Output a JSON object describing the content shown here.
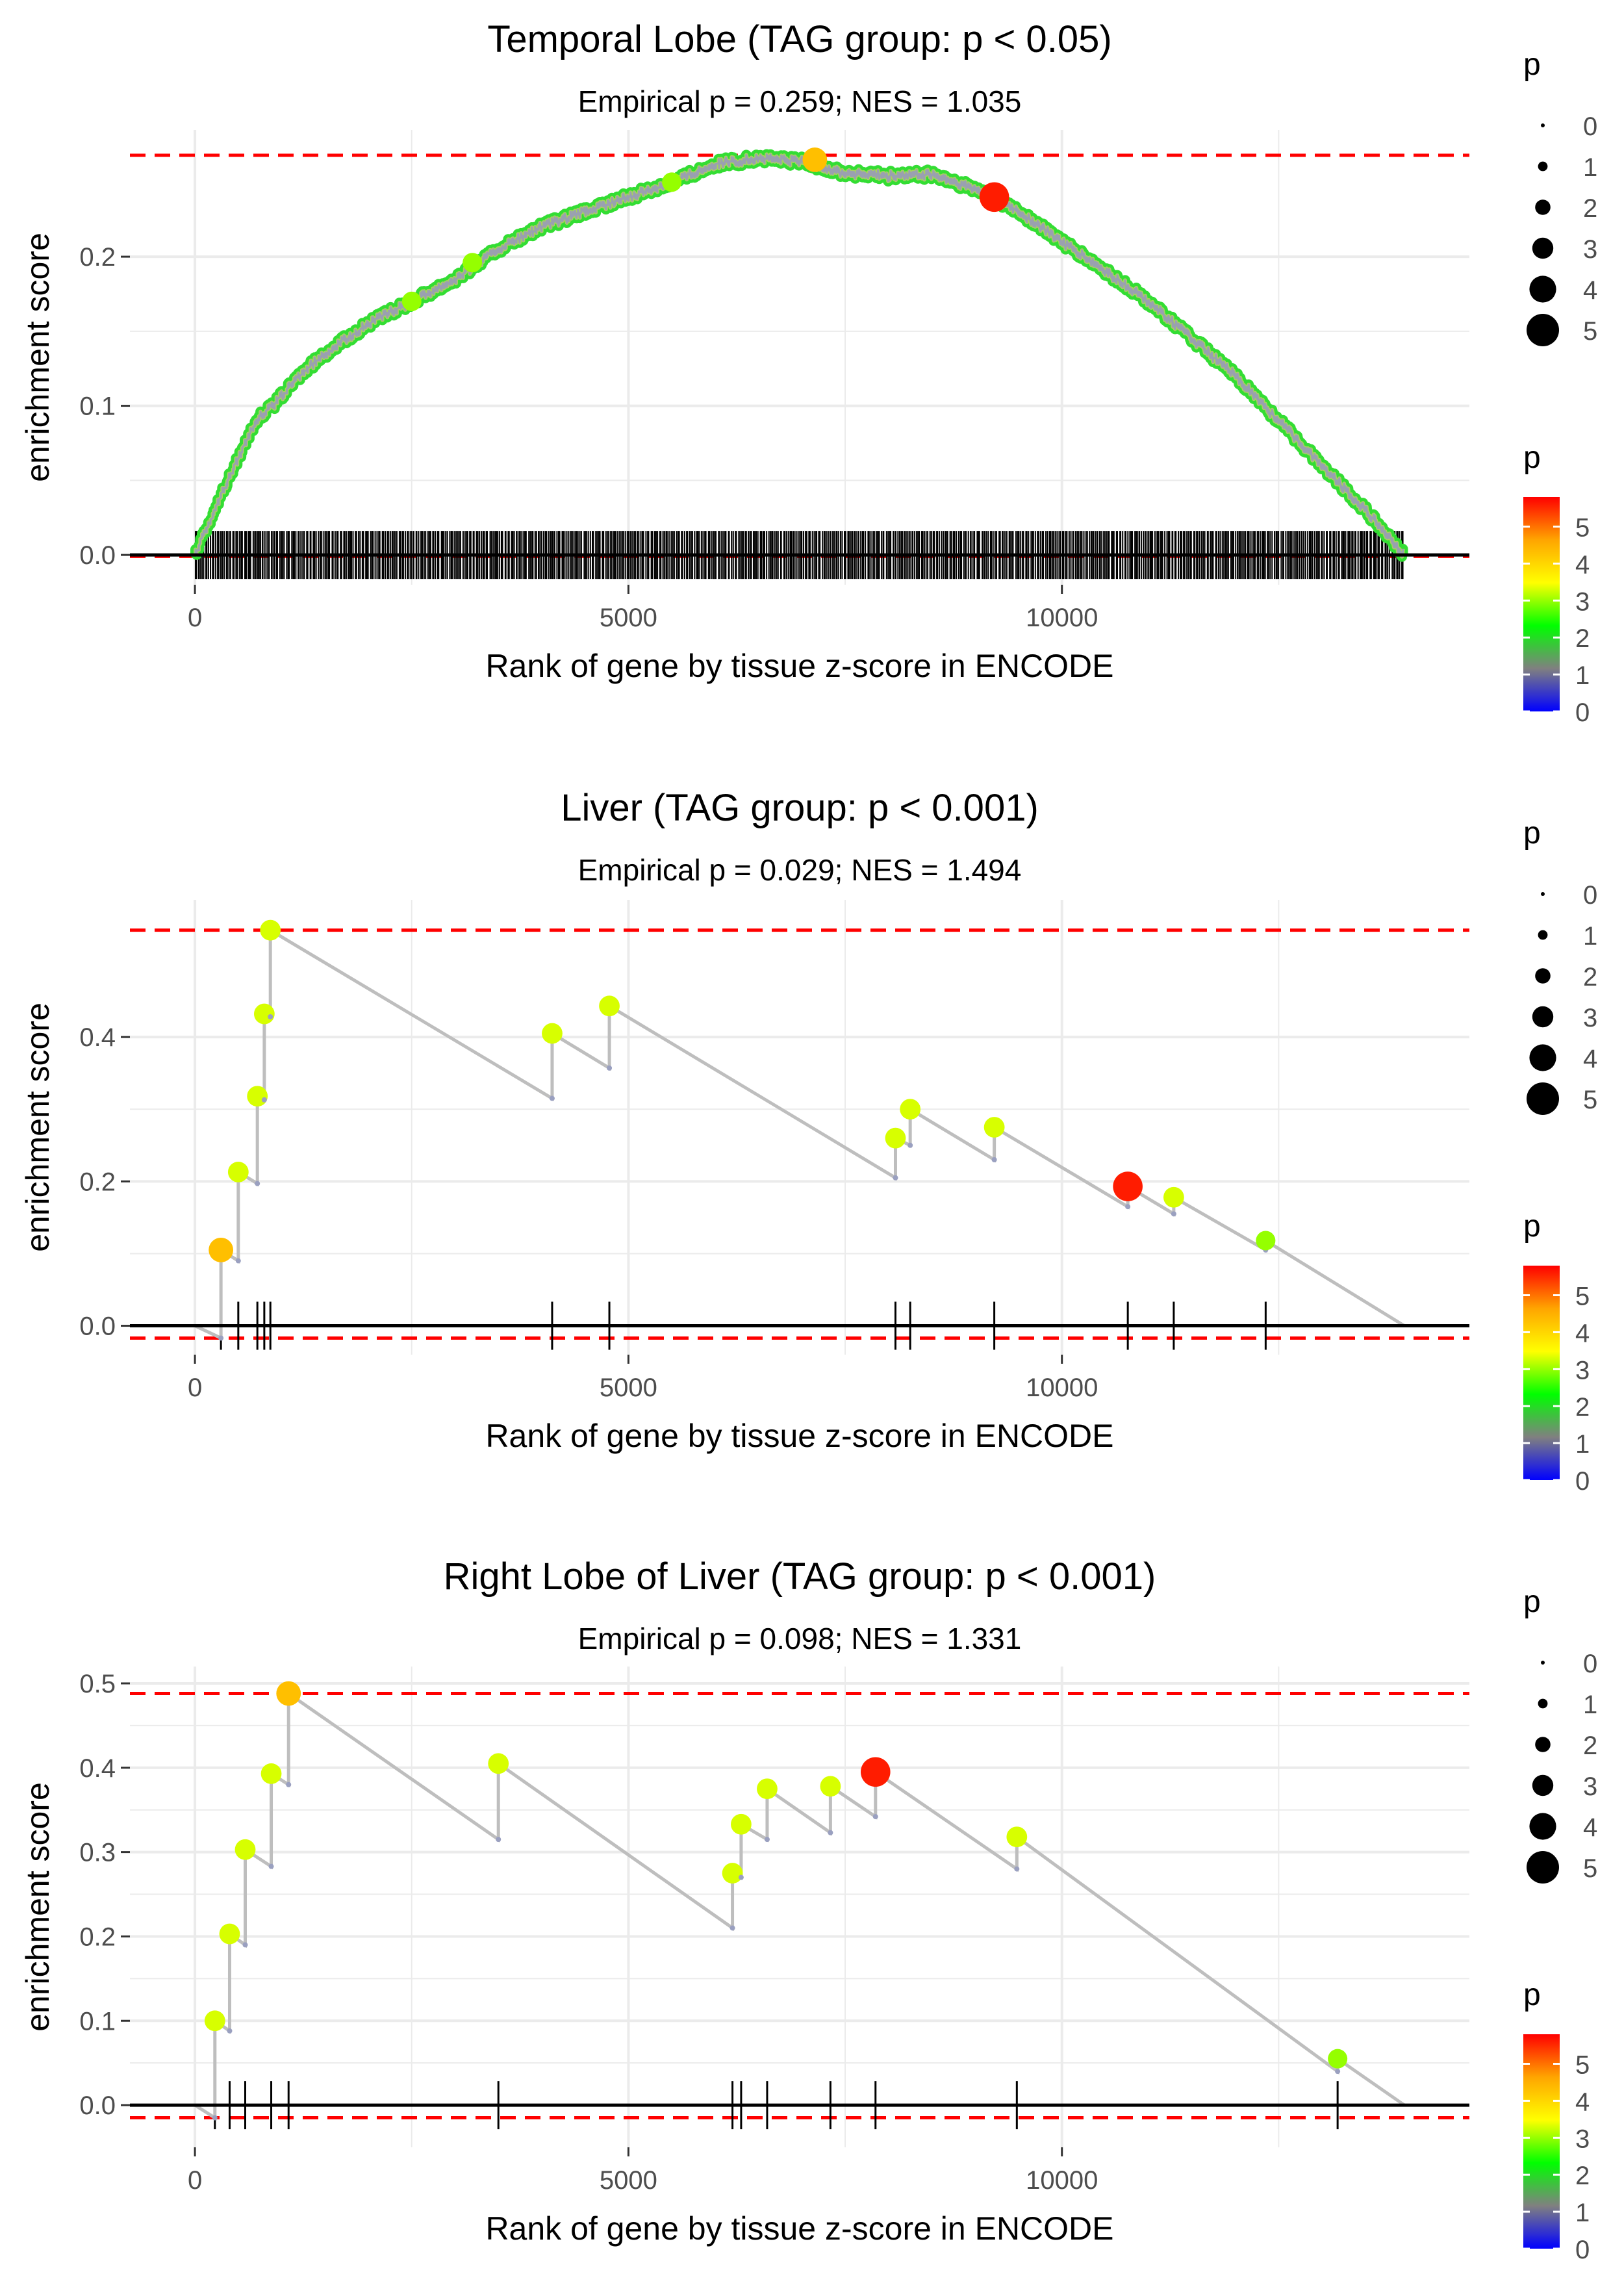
{
  "colors": {
    "background": "#ffffff",
    "grid": "#ebebeb",
    "axis_text": "#4d4d4d",
    "text": "#000000",
    "line": "#bebebe",
    "dashed": "#ff0000",
    "scale_stops": [
      "#0000ff",
      "#808080",
      "#00ff00",
      "#ffff00",
      "#ffa500",
      "#ff0000"
    ]
  },
  "chart_data": [
    {
      "type": "line",
      "title": "Temporal Lobe (TAG group: p < 0.05)",
      "subtitle": "Empirical p = 0.259; NES = 1.035",
      "xlabel": "Rank of gene by tissue z-score in ENCODE",
      "ylabel": "enrichment score",
      "xlim": [
        -750,
        14700
      ],
      "ylim": [
        -0.02,
        0.285
      ],
      "xticks": [
        0,
        5000,
        10000
      ],
      "xtick_labels": [
        "0",
        "5000",
        "10000"
      ],
      "yticks": [
        0.0,
        0.1,
        0.2
      ],
      "ytick_labels": [
        "0.0",
        "0.1",
        "0.2"
      ],
      "hlines": {
        "max": 0.268,
        "min": -0.001,
        "zero": 0
      },
      "dense_curve": true,
      "curve_profile": [
        [
          0,
          0.0
        ],
        [
          150,
          0.02
        ],
        [
          300,
          0.04
        ],
        [
          500,
          0.065
        ],
        [
          700,
          0.09
        ],
        [
          900,
          0.1
        ],
        [
          1200,
          0.12
        ],
        [
          1500,
          0.135
        ],
        [
          2000,
          0.155
        ],
        [
          2500,
          0.17
        ],
        [
          3000,
          0.185
        ],
        [
          3500,
          0.205
        ],
        [
          4000,
          0.22
        ],
        [
          4500,
          0.23
        ],
        [
          5000,
          0.24
        ],
        [
          5500,
          0.25
        ],
        [
          6000,
          0.262
        ],
        [
          6500,
          0.266
        ],
        [
          7000,
          0.264
        ],
        [
          7500,
          0.256
        ],
        [
          8000,
          0.254
        ],
        [
          8500,
          0.255
        ],
        [
          9000,
          0.245
        ],
        [
          9200,
          0.24
        ],
        [
          9500,
          0.23
        ],
        [
          10000,
          0.21
        ],
        [
          10500,
          0.19
        ],
        [
          11000,
          0.17
        ],
        [
          11500,
          0.145
        ],
        [
          12000,
          0.12
        ],
        [
          12500,
          0.09
        ],
        [
          13000,
          0.06
        ],
        [
          13500,
          0.03
        ],
        [
          13950,
          0.0
        ]
      ],
      "rug_range": [
        0,
        13950
      ],
      "rug_count": 720,
      "highlight_points": [
        {
          "x": 2500,
          "y": 0.17,
          "p": 3.0
        },
        {
          "x": 3200,
          "y": 0.196,
          "p": 3.0
        },
        {
          "x": 5500,
          "y": 0.25,
          "p": 3.0
        },
        {
          "x": 7150,
          "y": 0.265,
          "p": 4.3
        },
        {
          "x": 9220,
          "y": 0.24,
          "p": 5.6
        }
      ]
    },
    {
      "type": "line",
      "title": "Liver (TAG group: p < 0.001)",
      "subtitle": "Empirical p = 0.029; NES = 1.494",
      "xlabel": "Rank of gene by tissue z-score in ENCODE",
      "ylabel": "enrichment score",
      "xlim": [
        -750,
        14700
      ],
      "ylim": [
        -0.04,
        0.59
      ],
      "xticks": [
        0,
        5000,
        10000
      ],
      "xtick_labels": [
        "0",
        "5000",
        "10000"
      ],
      "yticks": [
        0.0,
        0.2,
        0.4
      ],
      "ytick_labels": [
        "0.0",
        "0.2",
        "0.4"
      ],
      "hlines": {
        "max": 0.548,
        "min": -0.017,
        "zero": 0
      },
      "start": [
        0,
        0.0
      ],
      "end": [
        13950,
        0.0
      ],
      "hits": [
        {
          "x": 300,
          "pre": -0.017,
          "post": 0.105,
          "p": 4.3
        },
        {
          "x": 500,
          "pre": 0.09,
          "post": 0.213,
          "p": 3.3
        },
        {
          "x": 720,
          "pre": 0.197,
          "post": 0.318,
          "p": 3.3
        },
        {
          "x": 800,
          "pre": 0.313,
          "post": 0.432,
          "p": 3.3
        },
        {
          "x": 870,
          "pre": 0.428,
          "post": 0.548,
          "p": 3.3
        },
        {
          "x": 4120,
          "pre": 0.315,
          "post": 0.405,
          "p": 3.3
        },
        {
          "x": 4780,
          "pre": 0.357,
          "post": 0.443,
          "p": 3.3
        },
        {
          "x": 8080,
          "pre": 0.205,
          "post": 0.26,
          "p": 3.3
        },
        {
          "x": 8250,
          "pre": 0.25,
          "post": 0.3,
          "p": 3.3
        },
        {
          "x": 9220,
          "pre": 0.23,
          "post": 0.275,
          "p": 3.3
        },
        {
          "x": 10760,
          "pre": 0.165,
          "post": 0.193,
          "p": 5.6
        },
        {
          "x": 11290,
          "pre": 0.155,
          "post": 0.178,
          "p": 3.3
        },
        {
          "x": 12350,
          "pre": 0.105,
          "post": 0.118,
          "p": 3.0
        }
      ]
    },
    {
      "type": "line",
      "title": "Right Lobe of Liver (TAG group: p < 0.001)",
      "subtitle": "Empirical p = 0.098; NES = 1.331",
      "xlabel": "Rank of gene by tissue z-score in ENCODE",
      "ylabel": "enrichment score",
      "xlim": [
        -750,
        14700
      ],
      "ylim": [
        -0.05,
        0.52
      ],
      "xticks": [
        0,
        5000,
        10000
      ],
      "xtick_labels": [
        "0",
        "5000",
        "10000"
      ],
      "yticks": [
        0.0,
        0.1,
        0.2,
        0.3,
        0.4,
        0.5
      ],
      "ytick_labels": [
        "0.0",
        "0.1",
        "0.2",
        "0.3",
        "0.4",
        "0.5"
      ],
      "hlines": {
        "max": 0.488,
        "min": -0.015,
        "zero": 0
      },
      "start": [
        0,
        0.0
      ],
      "end": [
        13950,
        0.0
      ],
      "hits": [
        {
          "x": 230,
          "pre": -0.015,
          "post": 0.1,
          "p": 3.3
        },
        {
          "x": 400,
          "pre": 0.088,
          "post": 0.203,
          "p": 3.3
        },
        {
          "x": 580,
          "pre": 0.19,
          "post": 0.303,
          "p": 3.3
        },
        {
          "x": 880,
          "pre": 0.283,
          "post": 0.393,
          "p": 3.3
        },
        {
          "x": 1080,
          "pre": 0.38,
          "post": 0.488,
          "p": 4.3
        },
        {
          "x": 3500,
          "pre": 0.315,
          "post": 0.405,
          "p": 3.3
        },
        {
          "x": 6200,
          "pre": 0.21,
          "post": 0.275,
          "p": 3.3
        },
        {
          "x": 6300,
          "pre": 0.27,
          "post": 0.333,
          "p": 3.3
        },
        {
          "x": 6600,
          "pre": 0.315,
          "post": 0.375,
          "p": 3.3
        },
        {
          "x": 7330,
          "pre": 0.323,
          "post": 0.378,
          "p": 3.3
        },
        {
          "x": 7850,
          "pre": 0.342,
          "post": 0.395,
          "p": 5.6
        },
        {
          "x": 9480,
          "pre": 0.28,
          "post": 0.318,
          "p": 3.3
        },
        {
          "x": 13180,
          "pre": 0.04,
          "post": 0.055,
          "p": 3.0
        }
      ]
    }
  ],
  "legend": {
    "size_title": "p",
    "size_labels": [
      "0",
      "1",
      "2",
      "3",
      "4",
      "5"
    ],
    "color_title": "p",
    "color_labels": [
      "0",
      "1",
      "2",
      "3",
      "4",
      "5"
    ],
    "color_range": [
      0,
      5.8
    ]
  }
}
